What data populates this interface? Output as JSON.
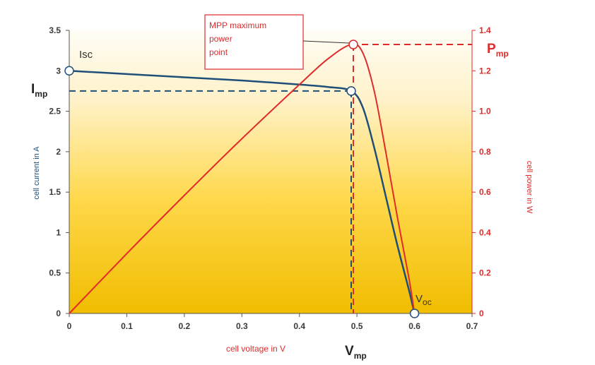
{
  "chart_data": {
    "type": "line",
    "xlabel": "cell voltage in V",
    "ylabel_left": "cell current in A",
    "ylabel_right": "cell power in W",
    "xlim": [
      0,
      0.7
    ],
    "ylim_left": [
      0,
      3.5
    ],
    "ylim_right": [
      0,
      1.4
    ],
    "x_ticks": [
      "0",
      "0.1",
      "0.2",
      "0.3",
      "0.4",
      "0.5",
      "0.6",
      "0.7"
    ],
    "y_left_ticks": [
      "0",
      "0.5",
      "1",
      "1.5",
      "2",
      "2.5",
      "3",
      "3.5"
    ],
    "y_right_ticks": [
      "0",
      "0.2",
      "0.4",
      "0.6",
      "0.8",
      "1.0",
      "1.2",
      "1.4"
    ],
    "series": [
      {
        "axis": "left",
        "color": "#1f4e79",
        "x": [
          0,
          0.1,
          0.2,
          0.3,
          0.4,
          0.45,
          0.49,
          0.51,
          0.53,
          0.55,
          0.57,
          0.59,
          0.6
        ],
        "y": [
          3.0,
          2.96,
          2.92,
          2.88,
          2.83,
          2.8,
          2.75,
          2.55,
          2.05,
          1.45,
          0.85,
          0.3,
          0
        ]
      },
      {
        "axis": "right",
        "color": "#e02b2b",
        "x": [
          0,
          0.1,
          0.2,
          0.3,
          0.4,
          0.45,
          0.49,
          0.51,
          0.53,
          0.55,
          0.57,
          0.59,
          0.6
        ],
        "y": [
          0,
          0.296,
          0.584,
          0.864,
          1.132,
          1.26,
          1.33,
          1.29,
          1.1,
          0.8,
          0.48,
          0.18,
          0
        ]
      }
    ],
    "mpp": {
      "v": 0.49,
      "i": 2.75,
      "p": 1.33
    },
    "isc": 3.0,
    "voc": 0.6
  },
  "labels": {
    "isc": "Isc",
    "voc_main": "V",
    "voc_sub": "oc",
    "imp_main": "I",
    "imp_sub": "mp",
    "vmp_main": "V",
    "vmp_sub": "mp",
    "pmp_main": "P",
    "pmp_sub": "mp",
    "mpp_line1": "MPP maximum",
    "mpp_line2": "power",
    "mpp_line3": "point"
  },
  "colors": {
    "current": "#1f4e79",
    "power": "#e02b2b",
    "bg_top": "#fffdf4",
    "bg_bottom": "#f2c200"
  }
}
